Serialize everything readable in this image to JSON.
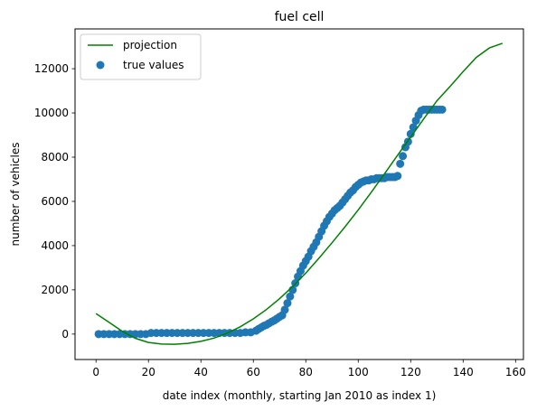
{
  "chart_data": {
    "type": "line",
    "title": "fuel cell",
    "xlabel": "date index (monthly, starting Jan 2010 as index 1)",
    "ylabel": "number of vehicles",
    "xlim": [
      -8,
      163
    ],
    "ylim": [
      -1150,
      13800
    ],
    "xticks": [
      0,
      20,
      40,
      60,
      80,
      100,
      120,
      140,
      160
    ],
    "yticks": [
      0,
      2000,
      4000,
      6000,
      8000,
      10000,
      12000
    ],
    "grid": false,
    "legend": {
      "placement": "top-left",
      "entries": [
        {
          "label": "projection",
          "marker": "line",
          "color": "#008000"
        },
        {
          "label": "true values",
          "marker": "circle",
          "color": "#1f77b4"
        }
      ]
    },
    "series": [
      {
        "name": "projection",
        "kind": "line",
        "color": "#008000",
        "x": [
          0,
          5,
          10,
          15,
          20,
          25,
          30,
          35,
          40,
          45,
          50,
          55,
          60,
          65,
          70,
          75,
          80,
          85,
          90,
          95,
          100,
          105,
          110,
          115,
          120,
          125,
          130,
          135,
          140,
          145,
          150,
          155
        ],
        "y": [
          930,
          530,
          130,
          -190,
          -380,
          -450,
          -460,
          -420,
          -330,
          -180,
          40,
          330,
          690,
          1110,
          1600,
          2150,
          2760,
          3430,
          4130,
          4860,
          5620,
          6420,
          7250,
          8090,
          8910,
          9740,
          10550,
          11200,
          11870,
          12510,
          12940,
          13150
        ]
      },
      {
        "name": "true values",
        "kind": "scatter",
        "color": "#1f77b4",
        "x": [
          1,
          3,
          5,
          7,
          9,
          11,
          13,
          15,
          17,
          19,
          21,
          23,
          25,
          27,
          29,
          31,
          33,
          35,
          37,
          39,
          41,
          43,
          45,
          47,
          49,
          51,
          53,
          55,
          57,
          59,
          61,
          62,
          63,
          64,
          65,
          66,
          67,
          68,
          69,
          70,
          71,
          72,
          73,
          74,
          75,
          76,
          77,
          78,
          79,
          80,
          81,
          82,
          83,
          84,
          85,
          86,
          87,
          88,
          89,
          90,
          91,
          92,
          93,
          94,
          95,
          96,
          97,
          98,
          99,
          100,
          101,
          102,
          103,
          104,
          105,
          106,
          107,
          108,
          109,
          110,
          111,
          112,
          113,
          114,
          115,
          116,
          117,
          118,
          119,
          120,
          121,
          122,
          123,
          124,
          125,
          126,
          127,
          128,
          129,
          130,
          131,
          132
        ],
        "y": [
          0,
          0,
          0,
          0,
          0,
          0,
          0,
          0,
          0,
          0,
          50,
          50,
          50,
          50,
          50,
          50,
          50,
          50,
          50,
          50,
          50,
          50,
          50,
          50,
          50,
          50,
          50,
          50,
          80,
          80,
          150,
          230,
          300,
          370,
          420,
          490,
          560,
          620,
          700,
          780,
          850,
          1100,
          1400,
          1700,
          2000,
          2300,
          2600,
          2850,
          3100,
          3300,
          3500,
          3750,
          3950,
          4150,
          4400,
          4650,
          4900,
          5100,
          5300,
          5450,
          5600,
          5700,
          5800,
          5950,
          6100,
          6250,
          6400,
          6500,
          6650,
          6750,
          6850,
          6900,
          6950,
          6950,
          7000,
          7000,
          7050,
          7050,
          7050,
          7050,
          7100,
          7100,
          7100,
          7100,
          7150,
          7700,
          8050,
          8450,
          8700,
          9050,
          9350,
          9650,
          9900,
          10100,
          10150,
          10150,
          10150,
          10150,
          10150,
          10150,
          10150,
          10150
        ]
      }
    ]
  }
}
